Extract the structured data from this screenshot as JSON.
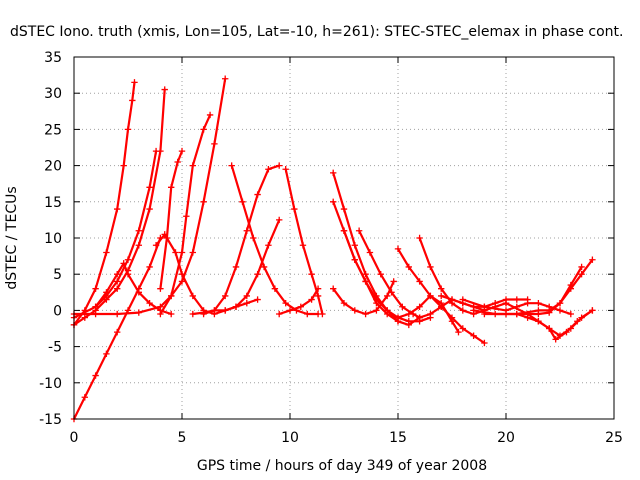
{
  "chart_data": {
    "type": "scatter",
    "title": "dSTEC Iono. truth (xmis, Lon=105, Lat=-10, h=261): STEC-STEC_elemax in phase cont.",
    "xlabel": "GPS time / hours of day 349 of year 2008",
    "ylabel": "dSTEC  / TECUs",
    "xlim": [
      0,
      25
    ],
    "ylim": [
      -15,
      35
    ],
    "xticks": [
      0,
      5,
      10,
      15,
      20,
      25
    ],
    "yticks": [
      -15,
      -10,
      -5,
      0,
      5,
      10,
      15,
      20,
      25,
      30,
      35
    ],
    "grid": true,
    "legend": "none",
    "marker": "plus",
    "color": "#ff0000",
    "series": [
      {
        "x": [
          0.0,
          0.5,
          1.0,
          1.5,
          2.0,
          2.3,
          2.5,
          2.7,
          2.8
        ],
        "y": [
          -2.0,
          0.0,
          3.0,
          8.0,
          14.0,
          20.0,
          25.0,
          29.0,
          31.5
        ]
      },
      {
        "x": [
          0.0,
          0.5,
          1.0,
          1.5,
          2.0,
          2.5,
          3.0,
          3.5,
          4.0
        ],
        "y": [
          -15.0,
          -12.0,
          -9.0,
          -6.0,
          -3.0,
          0.0,
          3.0,
          6.0,
          10.0
        ]
      },
      {
        "x": [
          0.0,
          0.5,
          1.0,
          1.5,
          2.0,
          2.5,
          3.0,
          3.5,
          4.0,
          4.2
        ],
        "y": [
          -2.0,
          -1.0,
          0.0,
          1.5,
          3.0,
          5.5,
          9.0,
          14.0,
          22.0,
          30.5
        ]
      },
      {
        "x": [
          0.0,
          1.0,
          1.5,
          2.0,
          2.5,
          3.0,
          3.5,
          3.8
        ],
        "y": [
          -1.0,
          0.5,
          2.0,
          4.0,
          7.0,
          11.0,
          17.0,
          22.0
        ]
      },
      {
        "x": [
          1.0,
          1.5,
          2.0,
          2.3,
          2.5,
          3.0,
          3.5,
          4.0,
          4.5
        ],
        "y": [
          0.5,
          2.5,
          5.0,
          6.5,
          5.0,
          2.5,
          1.0,
          0.0,
          -0.5
        ]
      },
      {
        "x": [
          0.0,
          1.0,
          2.0,
          3.0,
          4.0,
          4.5,
          5.0,
          5.5,
          6.0,
          6.5,
          7.0
        ],
        "y": [
          -0.5,
          -0.5,
          -0.5,
          -0.3,
          0.5,
          2.0,
          4.0,
          8.0,
          15.0,
          23.0,
          32.0
        ]
      },
      {
        "x": [
          4.0,
          4.5,
          5.0,
          5.2,
          5.5,
          6.0,
          6.3
        ],
        "y": [
          -0.5,
          2.0,
          8.0,
          13.0,
          20.0,
          25.0,
          27.0
        ]
      },
      {
        "x": [
          4.0,
          4.3,
          4.5,
          4.8,
          5.0
        ],
        "y": [
          3.0,
          10.0,
          17.0,
          20.5,
          22.0
        ]
      },
      {
        "x": [
          3.8,
          4.2,
          4.7,
          5.0,
          5.5,
          6.0,
          6.5,
          7.0,
          7.5,
          8.0,
          8.5
        ],
        "y": [
          9.0,
          10.5,
          8.0,
          5.0,
          2.0,
          0.0,
          -0.5,
          0.0,
          0.5,
          1.0,
          1.5
        ]
      },
      {
        "x": [
          5.5,
          6.0,
          6.5,
          7.0,
          7.5,
          8.0,
          8.5,
          9.0,
          9.5
        ],
        "y": [
          -0.5,
          -0.3,
          0.0,
          0.0,
          0.5,
          2.0,
          5.0,
          9.0,
          12.5
        ]
      },
      {
        "x": [
          6.0,
          6.5,
          7.0,
          7.5,
          8.0,
          8.5,
          9.0,
          9.5
        ],
        "y": [
          -0.5,
          0.0,
          2.0,
          6.0,
          11.0,
          16.0,
          19.5,
          20.0
        ]
      },
      {
        "x": [
          7.3,
          7.8,
          8.3,
          8.8,
          9.3,
          9.8,
          10.3,
          10.8,
          11.3
        ],
        "y": [
          20.0,
          15.0,
          10.0,
          6.0,
          3.0,
          1.0,
          0.0,
          -0.5,
          -0.5
        ]
      },
      {
        "x": [
          9.8,
          10.2,
          10.6,
          11.0,
          11.3,
          11.5
        ],
        "y": [
          19.5,
          14.0,
          9.0,
          5.0,
          2.0,
          -0.5
        ]
      },
      {
        "x": [
          9.5,
          10.0,
          10.5,
          11.0,
          11.3
        ],
        "y": [
          -0.5,
          0.0,
          0.5,
          1.5,
          3.0
        ]
      },
      {
        "x": [
          12.0,
          12.5,
          13.0,
          13.5,
          14.0,
          14.5,
          15.0,
          15.5,
          16.0
        ],
        "y": [
          19.0,
          14.0,
          9.0,
          5.0,
          2.0,
          0.0,
          -1.5,
          -2.0,
          -1.0
        ]
      },
      {
        "x": [
          12.0,
          12.5,
          13.0,
          13.5,
          14.0,
          14.5,
          15.0
        ],
        "y": [
          15.0,
          11.0,
          7.0,
          4.0,
          1.0,
          -0.5,
          -1.5
        ]
      },
      {
        "x": [
          12.5,
          13.0,
          13.5,
          14.0,
          14.5,
          15.0,
          15.5,
          16.0,
          16.5
        ],
        "y": [
          11.0,
          7.0,
          4.0,
          1.5,
          0.0,
          -1.0,
          -1.5,
          -1.5,
          -1.0
        ]
      },
      {
        "x": [
          13.2,
          13.7,
          14.2,
          14.7,
          15.2,
          15.7,
          16.0
        ],
        "y": [
          11.0,
          8.0,
          5.0,
          2.5,
          0.5,
          -0.5,
          -1.0
        ]
      },
      {
        "x": [
          12.0,
          12.5,
          13.0,
          13.5,
          14.0,
          14.5,
          14.8
        ],
        "y": [
          3.0,
          1.0,
          0.0,
          -0.5,
          0.0,
          2.0,
          4.0
        ]
      },
      {
        "x": [
          15.0,
          15.5,
          16.0,
          16.5,
          17.0,
          17.5,
          18.0,
          18.5,
          19.0
        ],
        "y": [
          8.5,
          6.0,
          4.0,
          2.0,
          0.5,
          -1.0,
          -2.5,
          -3.5,
          -4.5
        ]
      },
      {
        "x": [
          16.0,
          16.5,
          17.0,
          17.5,
          18.0,
          18.5,
          19.0
        ],
        "y": [
          10.0,
          6.0,
          3.0,
          1.0,
          0.0,
          -0.5,
          0.0
        ]
      },
      {
        "x": [
          15.0,
          15.5,
          16.0,
          16.5,
          17.0,
          17.5,
          17.8
        ],
        "y": [
          -1.0,
          -0.5,
          0.5,
          2.0,
          1.0,
          -1.5,
          -3.0
        ]
      },
      {
        "x": [
          16.0,
          16.5,
          17.0,
          17.5,
          18.0,
          18.5,
          19.0,
          19.5,
          20.0
        ],
        "y": [
          -1.0,
          -0.5,
          0.5,
          1.5,
          1.0,
          0.5,
          0.0,
          0.5,
          1.0
        ]
      },
      {
        "x": [
          17.0,
          17.5,
          18.0,
          18.5,
          19.0,
          19.5,
          20.0,
          20.5,
          21.0
        ],
        "y": [
          2.0,
          1.5,
          1.0,
          0.5,
          0.5,
          1.0,
          1.5,
          1.5,
          1.5
        ]
      },
      {
        "x": [
          18.0,
          19.0,
          20.0,
          20.5,
          21.0,
          21.5,
          22.0,
          22.5,
          23.0
        ],
        "y": [
          1.5,
          0.5,
          0.0,
          0.5,
          1.0,
          1.0,
          0.5,
          0.0,
          -0.5
        ]
      },
      {
        "x": [
          18.5,
          19.5,
          20.5,
          21.5,
          22.0,
          22.5,
          23.0,
          23.5,
          24.0
        ],
        "y": [
          0.0,
          -0.5,
          -0.5,
          0.0,
          0.0,
          1.0,
          3.0,
          5.0,
          7.0
        ]
      },
      {
        "x": [
          19.0,
          20.0,
          21.0,
          21.5,
          22.0,
          22.5,
          23.0,
          23.5
        ],
        "y": [
          -0.5,
          -0.5,
          -0.5,
          -0.5,
          -0.3,
          1.0,
          3.5,
          6.0
        ]
      },
      {
        "x": [
          20.0,
          21.0,
          21.5,
          22.0,
          22.3,
          22.8,
          23.3,
          24.0
        ],
        "y": [
          1.0,
          -0.5,
          -1.5,
          -2.5,
          -4.0,
          -3.0,
          -1.5,
          0.0
        ]
      },
      {
        "x": [
          20.5,
          21.0,
          21.5,
          22.0,
          22.5,
          23.0,
          23.5,
          24.0
        ],
        "y": [
          -0.5,
          -1.0,
          -1.5,
          -2.5,
          -3.5,
          -2.5,
          -1.0,
          0.0
        ]
      }
    ]
  }
}
